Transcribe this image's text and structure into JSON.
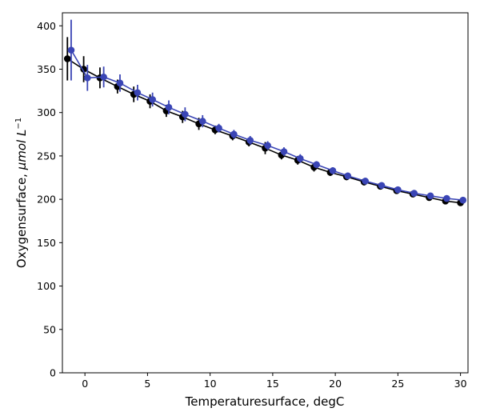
{
  "chart_data": {
    "type": "line",
    "xlabel": "Temperaturesurface,  degC",
    "ylabel_main": "Oxygensurface,  ",
    "ylabel_unit": "μmol L",
    "ylabel_exp": "−1",
    "xlim": [
      -1.8,
      30.6
    ],
    "ylim": [
      0,
      415
    ],
    "xticks": [
      0,
      5,
      10,
      15,
      20,
      25,
      30
    ],
    "yticks": [
      0,
      50,
      100,
      150,
      200,
      250,
      300,
      350,
      400
    ],
    "grid": false,
    "series": [
      {
        "color": "#000000",
        "x": [
          -1.4,
          -0.1,
          1.2,
          2.6,
          3.9,
          5.2,
          6.5,
          7.8,
          9.1,
          10.4,
          11.8,
          13.1,
          14.4,
          15.7,
          17.0,
          18.3,
          19.6,
          20.9,
          22.3,
          23.6,
          24.9,
          26.2,
          27.5,
          28.8,
          30.0
        ],
        "y": [
          362,
          350,
          340,
          330,
          321,
          313,
          302,
          295,
          287,
          280,
          273,
          266,
          259,
          251,
          245,
          237,
          231,
          226,
          220,
          215,
          210,
          206,
          202,
          198,
          196
        ],
        "err": [
          25,
          15,
          12,
          8,
          9,
          8,
          7,
          7,
          7,
          5,
          5,
          5,
          7,
          5,
          5,
          5,
          4,
          4,
          4,
          3,
          3,
          3,
          3,
          3,
          3
        ]
      },
      {
        "color": "#3a45b5",
        "x": [
          -1.1,
          0.2,
          1.5,
          2.8,
          4.2,
          5.4,
          6.7,
          8.0,
          9.4,
          10.7,
          11.9,
          13.2,
          14.6,
          15.9,
          17.2,
          18.5,
          19.8,
          21.0,
          22.4,
          23.7,
          25.0,
          26.3,
          27.6,
          28.9,
          30.2
        ],
        "y": [
          372,
          340,
          341,
          334,
          323,
          315,
          306,
          298,
          290,
          282,
          275,
          268,
          262,
          255,
          247,
          240,
          233,
          227,
          221,
          216,
          211,
          207,
          204,
          201,
          199
        ],
        "err": [
          35,
          15,
          12,
          10,
          9,
          8,
          8,
          8,
          7,
          5,
          5,
          5,
          5,
          5,
          5,
          4,
          4,
          3,
          3,
          3,
          3,
          3,
          3,
          3,
          3
        ]
      }
    ]
  }
}
